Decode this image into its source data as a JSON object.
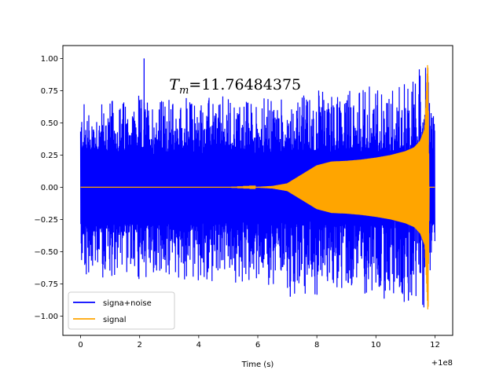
{
  "chart_data": {
    "type": "line",
    "title": "",
    "xlabel": "Time (s)",
    "ylabel": "",
    "x_offset_label": "+1e8",
    "xlim": [
      -0.6,
      12.6
    ],
    "ylim": [
      -1.15,
      1.1
    ],
    "xticks": [
      0,
      2,
      4,
      6,
      8,
      10,
      12
    ],
    "xtick_labels": [
      "0",
      "2",
      "4",
      "6",
      "8",
      "10",
      "12"
    ],
    "yticks": [
      -1.0,
      -0.75,
      -0.5,
      -0.25,
      0.0,
      0.25,
      0.5,
      0.75,
      1.0
    ],
    "ytick_labels": [
      "−1.00",
      "−0.75",
      "−0.50",
      "−0.25",
      "0.00",
      "0.25",
      "0.50",
      "0.75",
      "1.00"
    ],
    "grid": false,
    "legend_position": "lower-left",
    "annotation": {
      "symbol": "T",
      "subscript": "m",
      "value_text": "=11.76484375",
      "x": 3.0,
      "y": 0.8
    },
    "series": [
      {
        "name": "signa+noise",
        "color": "#0000ff",
        "x_range": [
          0,
          12.0
        ],
        "noise_envelope": {
          "x": [
            0,
            2,
            4,
            6,
            7,
            8,
            9,
            10,
            11,
            11.5,
            11.76,
            12.0
          ],
          "upper": [
            0.65,
            0.7,
            0.7,
            0.7,
            0.7,
            0.75,
            0.75,
            0.8,
            0.85,
            0.9,
            1.0,
            0.45
          ],
          "lower": [
            -0.7,
            -0.72,
            -0.75,
            -0.75,
            -0.8,
            -0.85,
            -0.8,
            -0.85,
            -0.9,
            -0.9,
            -1.03,
            -0.45
          ]
        },
        "notable_peaks": [
          {
            "x": 2.15,
            "y": 1.0
          },
          {
            "x": 7.1,
            "y": -0.85
          },
          {
            "x": 11.1,
            "y": -0.88
          }
        ]
      },
      {
        "name": "signal",
        "color": "#ffa500",
        "x_range": [
          0,
          12.0
        ],
        "envelope": {
          "x": [
            0,
            5,
            6,
            6.5,
            7,
            7.5,
            8,
            8.5,
            9,
            9.5,
            10,
            10.5,
            11,
            11.3,
            11.5,
            11.65,
            11.76,
            11.8,
            12.0
          ],
          "amplitude": [
            0,
            0,
            0.003,
            0.01,
            0.03,
            0.1,
            0.17,
            0.2,
            0.205,
            0.215,
            0.23,
            0.25,
            0.28,
            0.31,
            0.36,
            0.45,
            1.0,
            0.0,
            0.0
          ]
        }
      }
    ]
  }
}
